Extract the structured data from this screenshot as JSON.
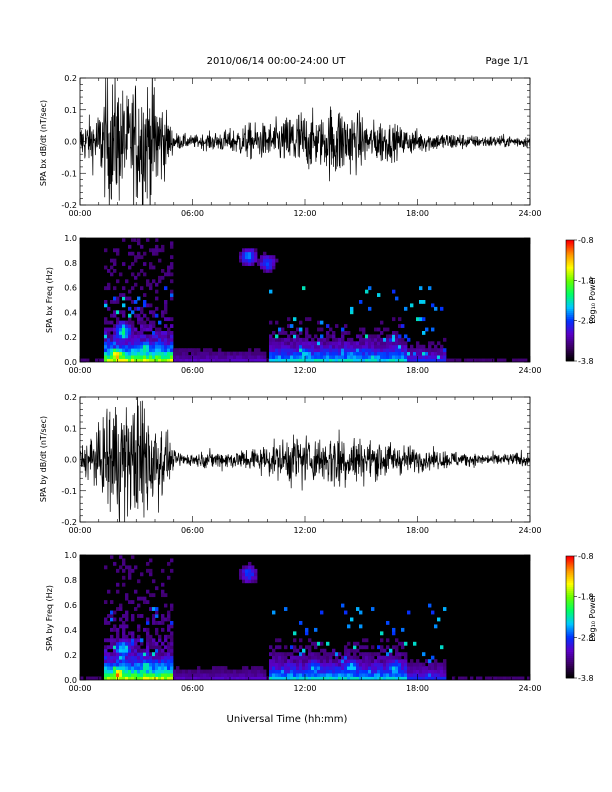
{
  "header": {
    "date_range": "2010/06/14  00:00-24:00 UT",
    "page": "Page 1/1"
  },
  "x_axis": {
    "label": "Universal Time (hh:mm)",
    "tick_labels": [
      "00:00",
      "06:00",
      "12:00",
      "18:00",
      "24:00"
    ]
  },
  "colorbar": {
    "label": "Log₁₀ Power",
    "range": [
      -3.8,
      -0.8
    ],
    "tick_labels": [
      "-0.8",
      "-1.8",
      "-2.8",
      "-3.8"
    ],
    "colors": [
      "#000000",
      "#3c0064",
      "#5a00c8",
      "#0032ff",
      "#00c8ff",
      "#00ff64",
      "#64ff00",
      "#ffff00",
      "#ff9600",
      "#ff0000"
    ]
  },
  "chart_data": [
    {
      "type": "line",
      "ylabel": "SPA bx dB/dt (nT/sec)",
      "xlim": [
        0,
        24
      ],
      "ylim": [
        -0.2,
        0.2
      ],
      "y_tick_labels": [
        "0.2",
        "0.1",
        "0.0",
        "-0.1",
        "-0.2"
      ],
      "color": "#000000",
      "envelope": {
        "x_hours": [
          0,
          1,
          1.5,
          2,
          2.5,
          3,
          3.5,
          4,
          4.5,
          5,
          6,
          7,
          8,
          9,
          10,
          11,
          11.5,
          12,
          13,
          13.5,
          14,
          15,
          15.5,
          16,
          17,
          18,
          19,
          20,
          21,
          22,
          23,
          24
        ],
        "amplitude": [
          0.06,
          0.1,
          0.22,
          0.22,
          0.15,
          0.22,
          0.22,
          0.22,
          0.12,
          0.03,
          0.02,
          0.03,
          0.04,
          0.06,
          0.06,
          0.08,
          0.12,
          0.1,
          0.08,
          0.14,
          0.12,
          0.09,
          0.06,
          0.08,
          0.05,
          0.04,
          0.03,
          0.03,
          0.02,
          0.02,
          0.02,
          0.02
        ]
      }
    },
    {
      "type": "heatmap",
      "ylabel": "SPA bx Freq (Hz)",
      "xlim": [
        0,
        24
      ],
      "ylim": [
        0,
        1.0
      ],
      "y_tick_labels": [
        "1.0",
        "0.8",
        "0.6",
        "0.4",
        "0.2",
        "0.0"
      ],
      "z_range": [
        -3.8,
        -0.8
      ],
      "hotspots": [
        {
          "t": 2.0,
          "f": 0.05,
          "level": 0.95
        },
        {
          "t": 2.3,
          "f": 0.25,
          "level": 0.6
        },
        {
          "t": 3.5,
          "f": 0.1,
          "level": 0.6
        },
        {
          "t": 4.2,
          "f": 0.1,
          "level": 0.5
        },
        {
          "t": 9.0,
          "f": 0.85,
          "level": 0.45
        },
        {
          "t": 10.0,
          "f": 0.8,
          "level": 0.4
        },
        {
          "t": 12.0,
          "f": 0.05,
          "level": 0.55
        },
        {
          "t": 14.5,
          "f": 0.05,
          "level": 0.5
        },
        {
          "t": 16.5,
          "f": 0.05,
          "level": 0.45
        }
      ]
    },
    {
      "type": "line",
      "ylabel": "SPA by dB/dt (nT/sec)",
      "xlim": [
        0,
        24
      ],
      "ylim": [
        -0.2,
        0.2
      ],
      "y_tick_labels": [
        "0.2",
        "0.1",
        "0.0",
        "-0.1",
        "-0.2"
      ],
      "color": "#000000",
      "envelope": {
        "x_hours": [
          0,
          1,
          1.5,
          2,
          2.5,
          3,
          3.5,
          4,
          4.5,
          5,
          6,
          7,
          8,
          9,
          10,
          11,
          11.5,
          12,
          13,
          13.5,
          14,
          15,
          15.5,
          16,
          17,
          18,
          19,
          20,
          21,
          22,
          23,
          24
        ],
        "amplitude": [
          0.05,
          0.09,
          0.2,
          0.22,
          0.18,
          0.22,
          0.22,
          0.2,
          0.1,
          0.03,
          0.02,
          0.03,
          0.03,
          0.04,
          0.05,
          0.07,
          0.1,
          0.08,
          0.07,
          0.12,
          0.1,
          0.07,
          0.06,
          0.07,
          0.05,
          0.04,
          0.03,
          0.03,
          0.02,
          0.02,
          0.02,
          0.03
        ]
      }
    },
    {
      "type": "heatmap",
      "ylabel": "SPA by Freq (Hz)",
      "xlim": [
        0,
        24
      ],
      "ylim": [
        0,
        1.0
      ],
      "y_tick_labels": [
        "1.0",
        "0.8",
        "0.6",
        "0.4",
        "0.2",
        "0.0"
      ],
      "z_range": [
        -3.8,
        -0.8
      ],
      "hotspots": [
        {
          "t": 2.0,
          "f": 0.05,
          "level": 0.95
        },
        {
          "t": 2.3,
          "f": 0.25,
          "level": 0.6
        },
        {
          "t": 3.5,
          "f": 0.1,
          "level": 0.6
        },
        {
          "t": 4.2,
          "f": 0.1,
          "level": 0.5
        },
        {
          "t": 9.0,
          "f": 0.85,
          "level": 0.4
        },
        {
          "t": 12.5,
          "f": 0.1,
          "level": 0.5
        },
        {
          "t": 14.5,
          "f": 0.1,
          "level": 0.5
        },
        {
          "t": 16.8,
          "f": 0.1,
          "level": 0.5
        }
      ]
    }
  ]
}
